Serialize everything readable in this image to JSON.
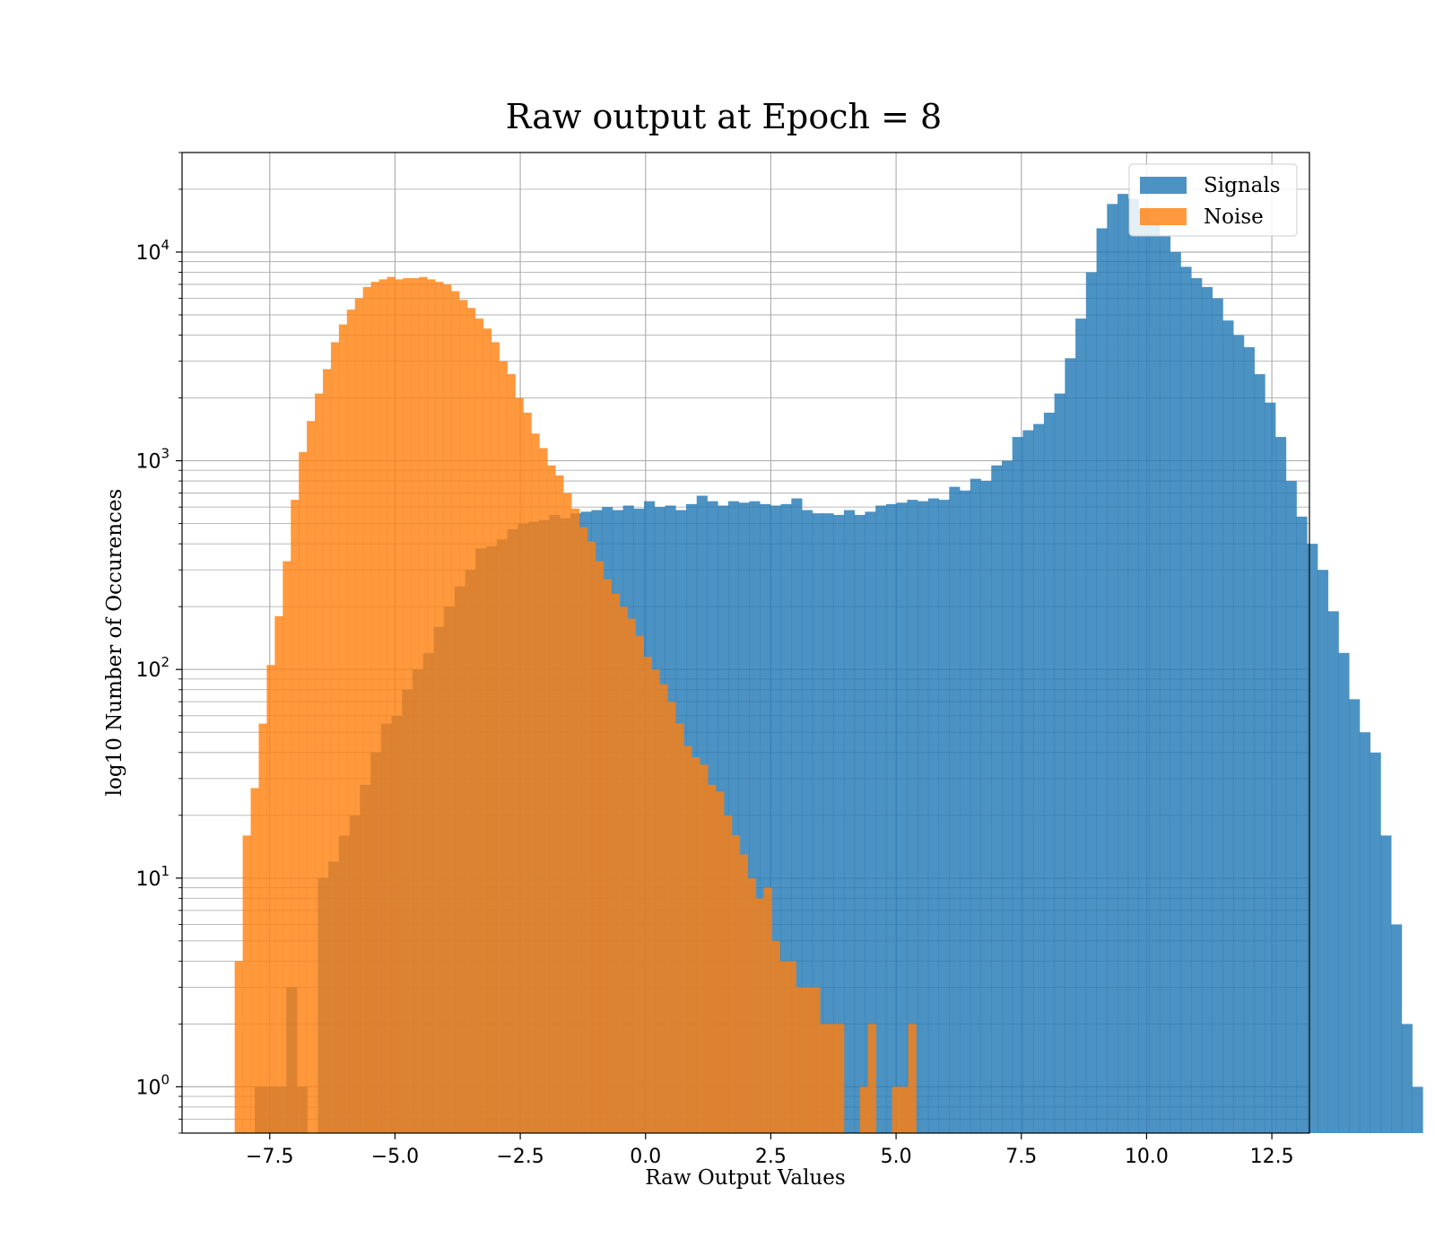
{
  "chart_data": {
    "type": "bar",
    "subtype": "overlaid-histogram",
    "title": "Raw output at Epoch = 8",
    "xlabel": "Raw Output Values",
    "ylabel": "log10 Number of Occurences",
    "xlim": [
      -9.25,
      13.25
    ],
    "ylim": [
      0.6,
      30000
    ],
    "yscale": "log",
    "grid": true,
    "legend_position": "top-right",
    "x_ticks": [
      -7.5,
      -5.0,
      -2.5,
      0.0,
      2.5,
      5.0,
      7.5,
      10.0,
      12.5
    ],
    "x_tick_labels": [
      "−7.5",
      "−5.0",
      "−2.5",
      "0.0",
      "2.5",
      "5.0",
      "7.5",
      "10.0",
      "12.5"
    ],
    "y_ticks": [
      1,
      10,
      100,
      1000,
      10000
    ],
    "y_tick_labels": [
      {
        "base": "10",
        "exp": "0"
      },
      {
        "base": "10",
        "exp": "1"
      },
      {
        "base": "10",
        "exp": "2"
      },
      {
        "base": "10",
        "exp": "3"
      },
      {
        "base": "10",
        "exp": "4"
      }
    ],
    "series": [
      {
        "name": "Signals",
        "color": "#1f77b4",
        "opacity": 0.8,
        "bin_start": -7.8,
        "bin_width": 0.21,
        "counts": [
          1,
          1,
          1,
          3,
          1,
          0,
          10,
          12,
          16,
          20,
          28,
          40,
          55,
          60,
          80,
          100,
          120,
          160,
          200,
          250,
          300,
          380,
          390,
          420,
          470,
          500,
          510,
          520,
          550,
          530,
          560,
          570,
          580,
          600,
          580,
          610,
          590,
          640,
          600,
          610,
          580,
          620,
          680,
          640,
          610,
          640,
          630,
          640,
          620,
          610,
          620,
          660,
          580,
          560,
          560,
          550,
          580,
          550,
          570,
          610,
          620,
          630,
          650,
          640,
          660,
          650,
          750,
          720,
          820,
          800,
          950,
          1000,
          1300,
          1400,
          1500,
          1700,
          2100,
          3100,
          4800,
          8000,
          13000,
          17000,
          19000,
          18000,
          16000,
          14000,
          12000,
          10000,
          8500,
          7500,
          6800,
          6000,
          4700,
          4000,
          3500,
          2600,
          1900,
          1300,
          800,
          540,
          400,
          300,
          190,
          120,
          72,
          50,
          40,
          16,
          6,
          2,
          1
        ]
      },
      {
        "name": "Noise",
        "color": "#ff7f0e",
        "opacity": 0.8,
        "bin_start": -8.2,
        "bin_width": 0.16,
        "counts": [
          4,
          16,
          27,
          55,
          105,
          180,
          330,
          650,
          1100,
          1550,
          2100,
          2750,
          3700,
          4500,
          5300,
          6000,
          6800,
          7200,
          7400,
          7600,
          7400,
          7500,
          7500,
          7600,
          7400,
          7200,
          7000,
          6500,
          5900,
          5400,
          4800,
          4300,
          3700,
          3000,
          2600,
          2000,
          1700,
          1350,
          1150,
          950,
          850,
          700,
          590,
          480,
          410,
          330,
          270,
          230,
          200,
          175,
          145,
          115,
          100,
          85,
          70,
          55,
          43,
          38,
          35,
          28,
          26,
          20,
          16,
          13,
          10,
          8,
          9,
          5,
          4,
          4,
          3,
          3,
          3,
          2,
          2,
          2,
          0,
          0,
          1,
          2,
          0,
          0,
          1,
          1,
          2
        ]
      }
    ]
  }
}
